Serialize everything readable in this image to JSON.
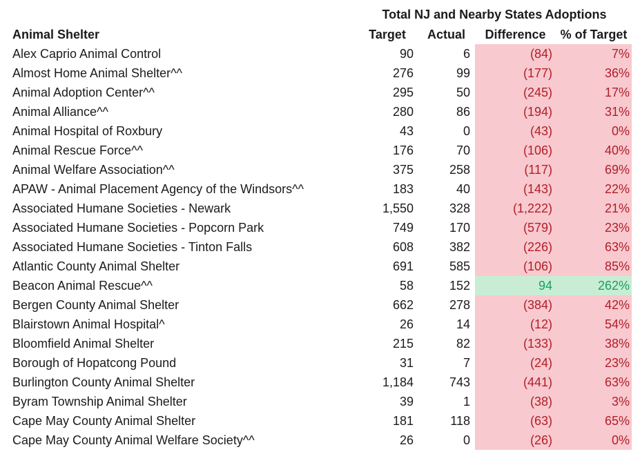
{
  "table": {
    "title": "Total NJ and Nearby States Adoptions",
    "columns": {
      "shelter": "Animal Shelter",
      "target": "Target",
      "actual": "Actual",
      "difference": "Difference",
      "pct": "% of Target"
    },
    "rows": [
      {
        "name": "Alex Caprio Animal Control",
        "target": "90",
        "actual": "6",
        "difference": "(84)",
        "pct": "7%",
        "status": "bad"
      },
      {
        "name": "Almost Home Animal Shelter^^",
        "target": "276",
        "actual": "99",
        "difference": "(177)",
        "pct": "36%",
        "status": "bad"
      },
      {
        "name": "Animal Adoption Center^^",
        "target": "295",
        "actual": "50",
        "difference": "(245)",
        "pct": "17%",
        "status": "bad"
      },
      {
        "name": "Animal Alliance^^",
        "target": "280",
        "actual": "86",
        "difference": "(194)",
        "pct": "31%",
        "status": "bad"
      },
      {
        "name": "Animal Hospital of Roxbury",
        "target": "43",
        "actual": "0",
        "difference": "(43)",
        "pct": "0%",
        "status": "bad"
      },
      {
        "name": "Animal Rescue Force^^",
        "target": "176",
        "actual": "70",
        "difference": "(106)",
        "pct": "40%",
        "status": "bad"
      },
      {
        "name": "Animal Welfare Association^^",
        "target": "375",
        "actual": "258",
        "difference": "(117)",
        "pct": "69%",
        "status": "bad"
      },
      {
        "name": "APAW - Animal Placement Agency of the Windsors^^",
        "target": "183",
        "actual": "40",
        "difference": "(143)",
        "pct": "22%",
        "status": "bad"
      },
      {
        "name": "Associated Humane Societies - Newark",
        "target": "1,550",
        "actual": "328",
        "difference": "(1,222)",
        "pct": "21%",
        "status": "bad"
      },
      {
        "name": "Associated Humane Societies - Popcorn Park",
        "target": "749",
        "actual": "170",
        "difference": "(579)",
        "pct": "23%",
        "status": "bad"
      },
      {
        "name": "Associated Humane Societies - Tinton Falls",
        "target": "608",
        "actual": "382",
        "difference": "(226)",
        "pct": "63%",
        "status": "bad"
      },
      {
        "name": "Atlantic County Animal Shelter",
        "target": "691",
        "actual": "585",
        "difference": "(106)",
        "pct": "85%",
        "status": "bad"
      },
      {
        "name": "Beacon Animal Rescue^^",
        "target": "58",
        "actual": "152",
        "difference": "94",
        "pct": "262%",
        "status": "good"
      },
      {
        "name": "Bergen County Animal Shelter",
        "target": "662",
        "actual": "278",
        "difference": "(384)",
        "pct": "42%",
        "status": "bad"
      },
      {
        "name": "Blairstown Animal Hospital^",
        "target": "26",
        "actual": "14",
        "difference": "(12)",
        "pct": "54%",
        "status": "bad"
      },
      {
        "name": "Bloomfield Animal Shelter",
        "target": "215",
        "actual": "82",
        "difference": "(133)",
        "pct": "38%",
        "status": "bad"
      },
      {
        "name": "Borough of Hopatcong Pound",
        "target": "31",
        "actual": "7",
        "difference": "(24)",
        "pct": "23%",
        "status": "bad"
      },
      {
        "name": "Burlington County Animal Shelter",
        "target": "1,184",
        "actual": "743",
        "difference": "(441)",
        "pct": "63%",
        "status": "bad"
      },
      {
        "name": "Byram Township Animal Shelter",
        "target": "39",
        "actual": "1",
        "difference": "(38)",
        "pct": "3%",
        "status": "bad"
      },
      {
        "name": "Cape May County Animal Shelter",
        "target": "181",
        "actual": "118",
        "difference": "(63)",
        "pct": "65%",
        "status": "bad"
      },
      {
        "name": "Cape May County Animal Welfare Society^^",
        "target": "26",
        "actual": "0",
        "difference": "(26)",
        "pct": "0%",
        "status": "bad"
      }
    ]
  },
  "colors": {
    "negative_bg": "#f8c9ce",
    "negative_text": "#b01e2a",
    "positive_bg": "#c9edd4",
    "positive_text": "#17a15f",
    "text": "#1b1b1b",
    "background": "#ffffff"
  },
  "chart_data": {
    "type": "table",
    "title": "Total NJ and Nearby States Adoptions",
    "columns": [
      "Animal Shelter",
      "Target",
      "Actual",
      "Difference",
      "% of Target"
    ],
    "rows": [
      {
        "name": "Alex Caprio Animal Control",
        "target": 90,
        "actual": 6,
        "difference": -84,
        "pct_of_target": 7
      },
      {
        "name": "Almost Home Animal Shelter^^",
        "target": 276,
        "actual": 99,
        "difference": -177,
        "pct_of_target": 36
      },
      {
        "name": "Animal Adoption Center^^",
        "target": 295,
        "actual": 50,
        "difference": -245,
        "pct_of_target": 17
      },
      {
        "name": "Animal Alliance^^",
        "target": 280,
        "actual": 86,
        "difference": -194,
        "pct_of_target": 31
      },
      {
        "name": "Animal Hospital of Roxbury",
        "target": 43,
        "actual": 0,
        "difference": -43,
        "pct_of_target": 0
      },
      {
        "name": "Animal Rescue Force^^",
        "target": 176,
        "actual": 70,
        "difference": -106,
        "pct_of_target": 40
      },
      {
        "name": "Animal Welfare Association^^",
        "target": 375,
        "actual": 258,
        "difference": -117,
        "pct_of_target": 69
      },
      {
        "name": "APAW - Animal Placement Agency of the Windsors^^",
        "target": 183,
        "actual": 40,
        "difference": -143,
        "pct_of_target": 22
      },
      {
        "name": "Associated Humane Societies - Newark",
        "target": 1550,
        "actual": 328,
        "difference": -1222,
        "pct_of_target": 21
      },
      {
        "name": "Associated Humane Societies - Popcorn Park",
        "target": 749,
        "actual": 170,
        "difference": -579,
        "pct_of_target": 23
      },
      {
        "name": "Associated Humane Societies - Tinton Falls",
        "target": 608,
        "actual": 382,
        "difference": -226,
        "pct_of_target": 63
      },
      {
        "name": "Atlantic County Animal Shelter",
        "target": 691,
        "actual": 585,
        "difference": -106,
        "pct_of_target": 85
      },
      {
        "name": "Beacon Animal Rescue^^",
        "target": 58,
        "actual": 152,
        "difference": 94,
        "pct_of_target": 262
      },
      {
        "name": "Bergen County Animal Shelter",
        "target": 662,
        "actual": 278,
        "difference": -384,
        "pct_of_target": 42
      },
      {
        "name": "Blairstown Animal Hospital^",
        "target": 26,
        "actual": 14,
        "difference": -12,
        "pct_of_target": 54
      },
      {
        "name": "Bloomfield Animal Shelter",
        "target": 215,
        "actual": 82,
        "difference": -133,
        "pct_of_target": 38
      },
      {
        "name": "Borough of Hopatcong Pound",
        "target": 31,
        "actual": 7,
        "difference": -24,
        "pct_of_target": 23
      },
      {
        "name": "Burlington County Animal Shelter",
        "target": 1184,
        "actual": 743,
        "difference": -441,
        "pct_of_target": 63
      },
      {
        "name": "Byram Township Animal Shelter",
        "target": 39,
        "actual": 1,
        "difference": -38,
        "pct_of_target": 3
      },
      {
        "name": "Cape May County Animal Shelter",
        "target": 181,
        "actual": 118,
        "difference": -63,
        "pct_of_target": 65
      },
      {
        "name": "Cape May County Animal Welfare Society^^",
        "target": 26,
        "actual": 0,
        "difference": -26,
        "pct_of_target": 0
      }
    ],
    "conditional_formatting": "Difference and % of Target cells: pink background with dark red text when difference is negative, green background with green text when positive"
  }
}
